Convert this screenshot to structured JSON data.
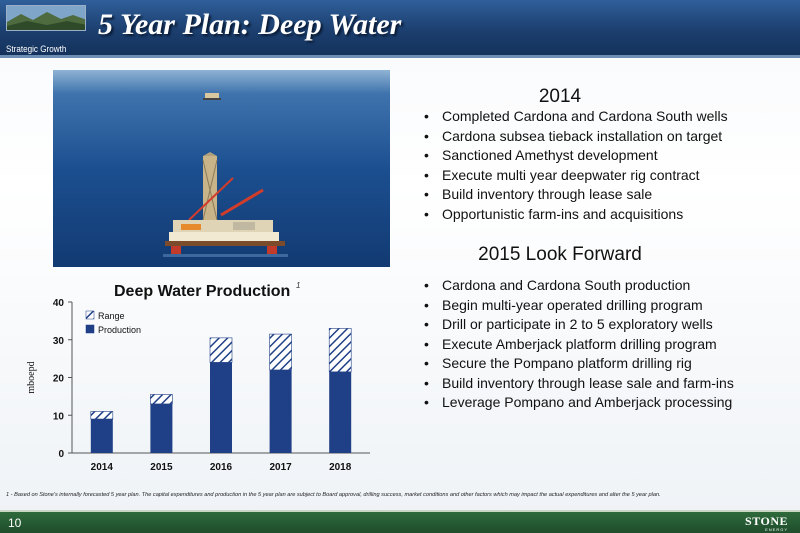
{
  "header": {
    "title": "5 Year Plan: Deep Water",
    "subtitle": "Strategic Growth"
  },
  "photo": {
    "description_icon": "offshore-rig-photo"
  },
  "section_2014": {
    "heading": "2014",
    "bullets": [
      "Completed Cardona and Cardona South wells",
      "Cardona subsea tieback installation on target",
      "Sanctioned Amethyst development",
      "Execute multi year deepwater rig contract",
      "Build inventory through lease sale",
      "Opportunistic farm-ins and acquisitions"
    ]
  },
  "section_2015": {
    "heading": "2015 Look Forward",
    "bullets": [
      "Cardona and Cardona South production",
      "Begin multi-year operated drilling program",
      "Drill or participate in 2 to 5 exploratory wells",
      "Execute Amberjack platform drilling program",
      "Secure the Pompano platform drilling rig",
      "Build inventory through lease sale and farm-ins",
      "Leverage Pompano and Amberjack processing"
    ]
  },
  "chart_data": {
    "type": "bar",
    "title": "Deep Water Production",
    "title_footnote": "1",
    "ylabel": "mboepd",
    "xlabel": "",
    "ylim": [
      0,
      40
    ],
    "yticks": [
      "0",
      "10",
      "20",
      "30",
      "40"
    ],
    "categories": [
      "2014",
      "2015",
      "2016",
      "2017",
      "2018"
    ],
    "series": [
      {
        "name": "Production",
        "values": [
          9,
          13,
          24,
          22,
          21.5
        ],
        "color": "#1f3f86"
      },
      {
        "name": "Range",
        "values": [
          2,
          2.5,
          6.5,
          9.5,
          11.5
        ],
        "color": "#1f3f86",
        "pattern": "hatched"
      }
    ],
    "stacked": true,
    "legend": "top-left",
    "grid": false
  },
  "footnote": "1 - Based on Stone's internally forecasted 5 year plan. The capital expenditures and production in the 5 year plan are subject to Board approval, drilling success, market conditions and other factors which may impact the actual expenditures and alter the 5 year plan.",
  "footer": {
    "page_number": "10",
    "brand": "STONE",
    "brand_sub": "ENERGY"
  },
  "colors": {
    "header": "#1c3f6f",
    "footer": "#1e4d2b",
    "bar": "#1f3f86"
  }
}
